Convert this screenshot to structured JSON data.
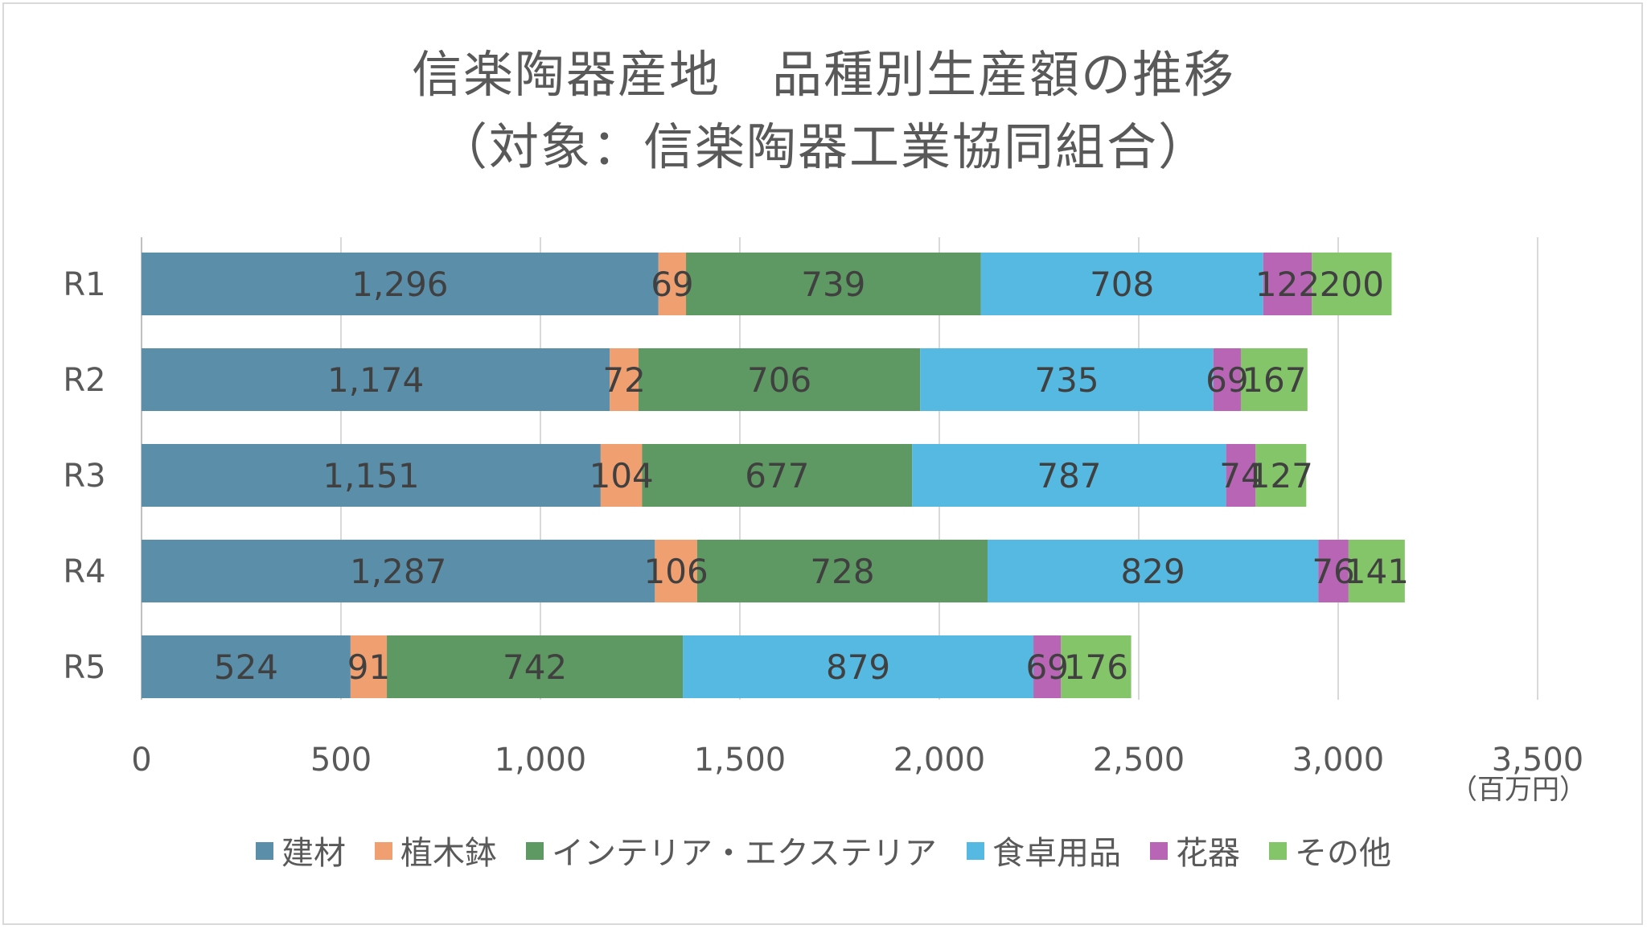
{
  "chart_data": {
    "type": "bar",
    "orientation": "horizontal",
    "stacked": true,
    "title": "信楽陶器産地　品種別生産額の推移",
    "subtitle": "（対象：信楽陶器工業協同組合）",
    "xlabel": "",
    "ylabel": "",
    "unit": "（百万円）",
    "categories": [
      "R1",
      "R2",
      "R3",
      "R4",
      "R5"
    ],
    "xlim": [
      0,
      3500
    ],
    "x_ticks": [
      0,
      500,
      1000,
      1500,
      2000,
      2500,
      3000,
      3500
    ],
    "x_tick_labels": [
      "0",
      "500",
      "1,000",
      "1,500",
      "2,000",
      "2,500",
      "3,000",
      "3,500"
    ],
    "grid": true,
    "legend_position": "bottom",
    "series": [
      {
        "name": "建材",
        "color": "#5b8ea9",
        "values": [
          1296,
          1174,
          1151,
          1287,
          524
        ],
        "labels": [
          "1,296",
          "1,174",
          "1,151",
          "1,287",
          "524"
        ]
      },
      {
        "name": "植木鉢",
        "color": "#f0a070",
        "values": [
          69,
          72,
          104,
          106,
          91
        ],
        "labels": [
          "69",
          "72",
          "104",
          "106",
          "91"
        ]
      },
      {
        "name": "インテリア・エクステリア",
        "color": "#5e9862",
        "values": [
          739,
          706,
          677,
          728,
          742
        ],
        "labels": [
          "739",
          "706",
          "677",
          "728",
          "742"
        ]
      },
      {
        "name": "食卓用品",
        "color": "#55b9e2",
        "values": [
          708,
          735,
          787,
          829,
          879
        ],
        "labels": [
          "708",
          "735",
          "787",
          "829",
          "879"
        ]
      },
      {
        "name": "花器",
        "color": "#b865b5",
        "values": [
          122,
          69,
          74,
          76,
          69
        ],
        "labels": [
          "122",
          "69",
          "74",
          "76",
          "69"
        ]
      },
      {
        "name": "その他",
        "color": "#84c56a",
        "values": [
          200,
          167,
          127,
          141,
          176
        ],
        "labels": [
          "200",
          "167",
          "127",
          "141",
          "176"
        ]
      }
    ]
  }
}
